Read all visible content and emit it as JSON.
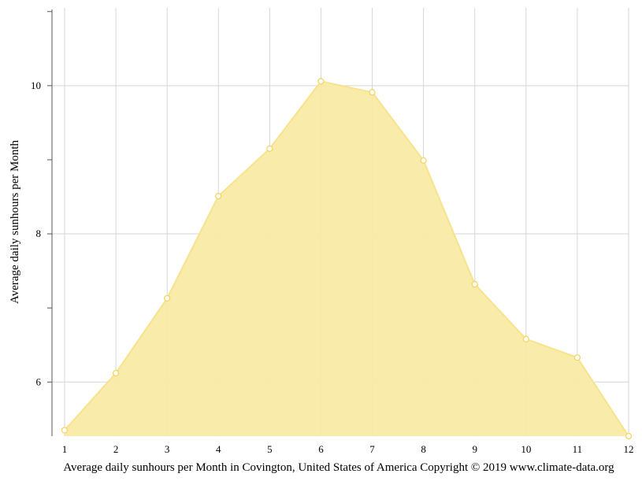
{
  "chart_data": {
    "type": "area",
    "title": "Average daily sunhours per Month in Covington, United States of America Copyright © 2019 www.climate-data.org",
    "ylabel": "Average daily sunhours per Month",
    "xlabel": "",
    "x": [
      1,
      2,
      3,
      4,
      5,
      6,
      7,
      8,
      9,
      10,
      11,
      12
    ],
    "series": [
      {
        "values": [
          5.35,
          6.12,
          7.13,
          8.51,
          9.15,
          10.06,
          9.91,
          8.99,
          7.32,
          6.58,
          6.33,
          5.27
        ]
      }
    ],
    "xlim": [
      1,
      12
    ],
    "ylim": [
      5.27,
      11.05
    ],
    "yticks_labeled": [
      6,
      8,
      10
    ],
    "yticks_minor": [
      7,
      9,
      11
    ],
    "grid": true,
    "colors": {
      "fill": "#f9eaa5",
      "line": "#f7e38c",
      "marker_fill": "#ffffff",
      "marker_stroke": "#f3d561",
      "grid": "#d6d6d6",
      "axis": "#555555"
    }
  }
}
